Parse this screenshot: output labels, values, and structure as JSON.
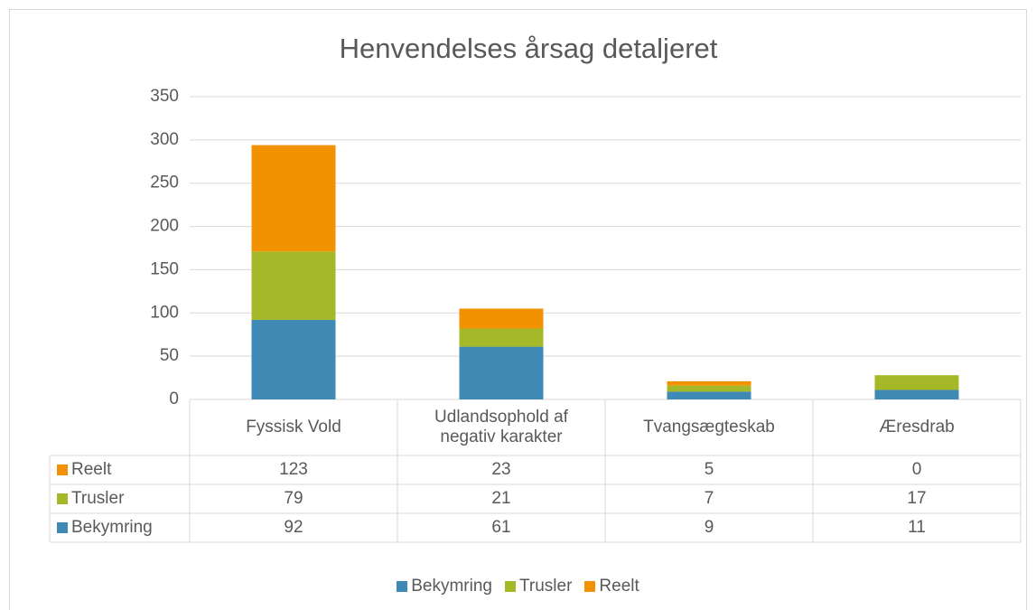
{
  "chart_data": {
    "type": "bar",
    "stacked": true,
    "title": "Henvendelses årsag detaljeret",
    "categories": [
      "Fyssisk Vold",
      "Udlandsophold af negativ karakter",
      "Tvangsægteskab",
      "Æresdrab"
    ],
    "series": [
      {
        "name": "Bekymring",
        "color": "#3f8ab5",
        "values": [
          92,
          61,
          9,
          11
        ]
      },
      {
        "name": "Trusler",
        "color": "#a5b828",
        "values": [
          79,
          21,
          7,
          17
        ]
      },
      {
        "name": "Reelt",
        "color": "#f39200",
        "values": [
          123,
          23,
          5,
          0
        ]
      }
    ],
    "ylim": [
      0,
      350
    ],
    "yticks": [
      0,
      50,
      100,
      150,
      200,
      250,
      300,
      350
    ],
    "grid": true,
    "data_table": true,
    "legend": "bottom"
  }
}
